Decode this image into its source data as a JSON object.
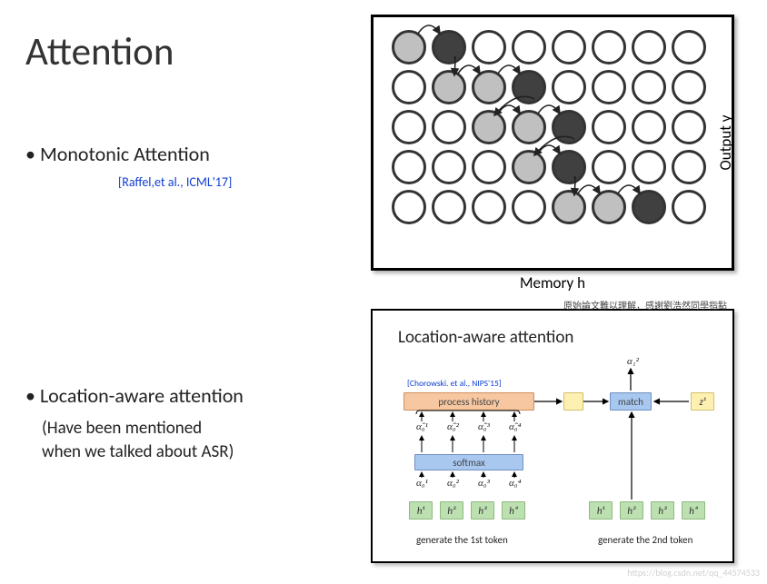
{
  "title": "Attention",
  "bullet1": "Monotonic Attention",
  "cite1": "[Raffel,et al., ICML'17]",
  "bullet2": "Location-aware attention",
  "sub2a": "(Have been mentioned",
  "sub2b": "when we talked about ASR)",
  "fig1": {
    "xlabel": "Memory h",
    "ylabel": "Output y",
    "rows": 5,
    "cols": 8,
    "cell_size": 38,
    "cell_gap": 6,
    "stroke": "#333333",
    "empty_fill": "#ffffff",
    "cand_fill": "#c0c0c0",
    "sel_fill": "#404040",
    "candidates": [
      {
        "row": 0,
        "col": 0
      },
      {
        "row": 1,
        "col": 1
      },
      {
        "row": 1,
        "col": 2
      },
      {
        "row": 2,
        "col": 2
      },
      {
        "row": 2,
        "col": 3
      },
      {
        "row": 3,
        "col": 3
      },
      {
        "row": 4,
        "col": 4
      },
      {
        "row": 4,
        "col": 5
      }
    ],
    "selected": [
      {
        "row": 0,
        "col": 1
      },
      {
        "row": 1,
        "col": 3
      },
      {
        "row": 2,
        "col": 4
      },
      {
        "row": 3,
        "col": 4
      },
      {
        "row": 4,
        "col": 6
      }
    ],
    "arrows": [
      {
        "from": {
          "row": 0,
          "col": 0
        },
        "to": {
          "row": 0,
          "col": 1
        }
      },
      {
        "from": {
          "row": 0,
          "col": 1
        },
        "to": {
          "row": 1,
          "col": 1
        }
      },
      {
        "from": {
          "row": 1,
          "col": 1
        },
        "to": {
          "row": 1,
          "col": 2
        }
      },
      {
        "from": {
          "row": 1,
          "col": 2
        },
        "to": {
          "row": 1,
          "col": 3
        }
      },
      {
        "from": {
          "row": 1,
          "col": 3
        },
        "to": {
          "row": 2,
          "col": 2
        }
      },
      {
        "from": {
          "row": 2,
          "col": 2
        },
        "to": {
          "row": 2,
          "col": 3
        }
      },
      {
        "from": {
          "row": 2,
          "col": 3
        },
        "to": {
          "row": 2,
          "col": 4
        }
      },
      {
        "from": {
          "row": 2,
          "col": 4
        },
        "to": {
          "row": 3,
          "col": 3
        }
      },
      {
        "from": {
          "row": 3,
          "col": 3
        },
        "to": {
          "row": 3,
          "col": 4
        }
      },
      {
        "from": {
          "row": 3,
          "col": 4
        },
        "to": {
          "row": 4,
          "col": 4
        }
      },
      {
        "from": {
          "row": 4,
          "col": 4
        },
        "to": {
          "row": 4,
          "col": 5
        }
      },
      {
        "from": {
          "row": 4,
          "col": 5
        },
        "to": {
          "row": 4,
          "col": 6
        }
      }
    ]
  },
  "fig2": {
    "note": "原始論文難以理解，感謝劉浩然同學指點",
    "title": "Location-aware attention",
    "cite": "[Chorowski. et al., NIPS'15]",
    "process_hist_label": "process history",
    "softmax_label": "softmax",
    "match_label": "match",
    "z_label": "z¹",
    "alpha1_2": "α₁²",
    "alpha0_hat": [
      "α̂₀¹",
      "α̂₀²",
      "α̂₀³",
      "α̂₀⁴"
    ],
    "alpha0": [
      "α₀¹",
      "α₀²",
      "α₀³",
      "α₀⁴"
    ],
    "h_labels": [
      "h¹",
      "h²",
      "h³",
      "h⁴"
    ],
    "gen1": "generate the 1st token",
    "gen2": "generate the 2nd token",
    "colors": {
      "process_hist": "#f6c7a0",
      "softmax": "#a8c8f0",
      "match": "#a8c8f0",
      "yellow": "#fef0b0",
      "green": "#bce0b0",
      "arrow": "#000000"
    }
  },
  "watermark": "https://blog.csdn.net/qq_44574533"
}
